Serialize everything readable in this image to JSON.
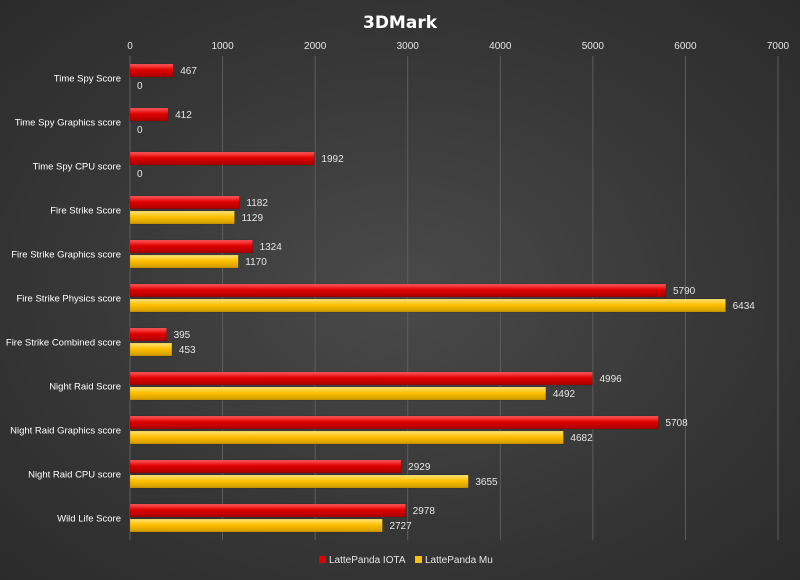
{
  "chart_data": {
    "type": "bar",
    "orientation": "horizontal",
    "title": "3DMark",
    "xlabel": "",
    "ylabel": "",
    "xlim": [
      0,
      7000
    ],
    "ticks": [
      0,
      1000,
      2000,
      3000,
      4000,
      5000,
      6000,
      7000
    ],
    "tick_labels": [
      "0",
      "1000",
      "2000",
      "3000",
      "4000",
      "5000",
      "6000",
      "7000"
    ],
    "axis_position": "top",
    "grid": true,
    "legend_position": "bottom",
    "categories": [
      "Time Spy Score",
      "Time Spy Graphics score",
      "Time Spy CPU score",
      "Fire Strike Score",
      "Fire Strike Graphics score",
      "Fire Strike Physics score",
      "Fire Strike Combined score",
      "Night Raid Score",
      "Night Raid Graphics score",
      "Night Raid CPU score",
      "Wild Life Score"
    ],
    "series": [
      {
        "name": "LattePanda IOTA",
        "color": "#e00000",
        "values": [
          467,
          412,
          1992,
          1182,
          1324,
          5790,
          395,
          4996,
          5708,
          2929,
          2978
        ],
        "value_labels": [
          "467",
          "412",
          "1992",
          "1182",
          "1324",
          "5790",
          "395",
          "4996",
          "5708",
          "2929",
          "2978"
        ]
      },
      {
        "name": "LattePanda Mu",
        "color": "#ffc000",
        "values": [
          0,
          0,
          0,
          1129,
          1170,
          6434,
          453,
          4492,
          4682,
          3655,
          2727
        ],
        "value_labels": [
          "0",
          "0",
          "0",
          "1129",
          "1170",
          "6434",
          "453",
          "4492",
          "4682",
          "3655",
          "2727"
        ]
      }
    ]
  }
}
